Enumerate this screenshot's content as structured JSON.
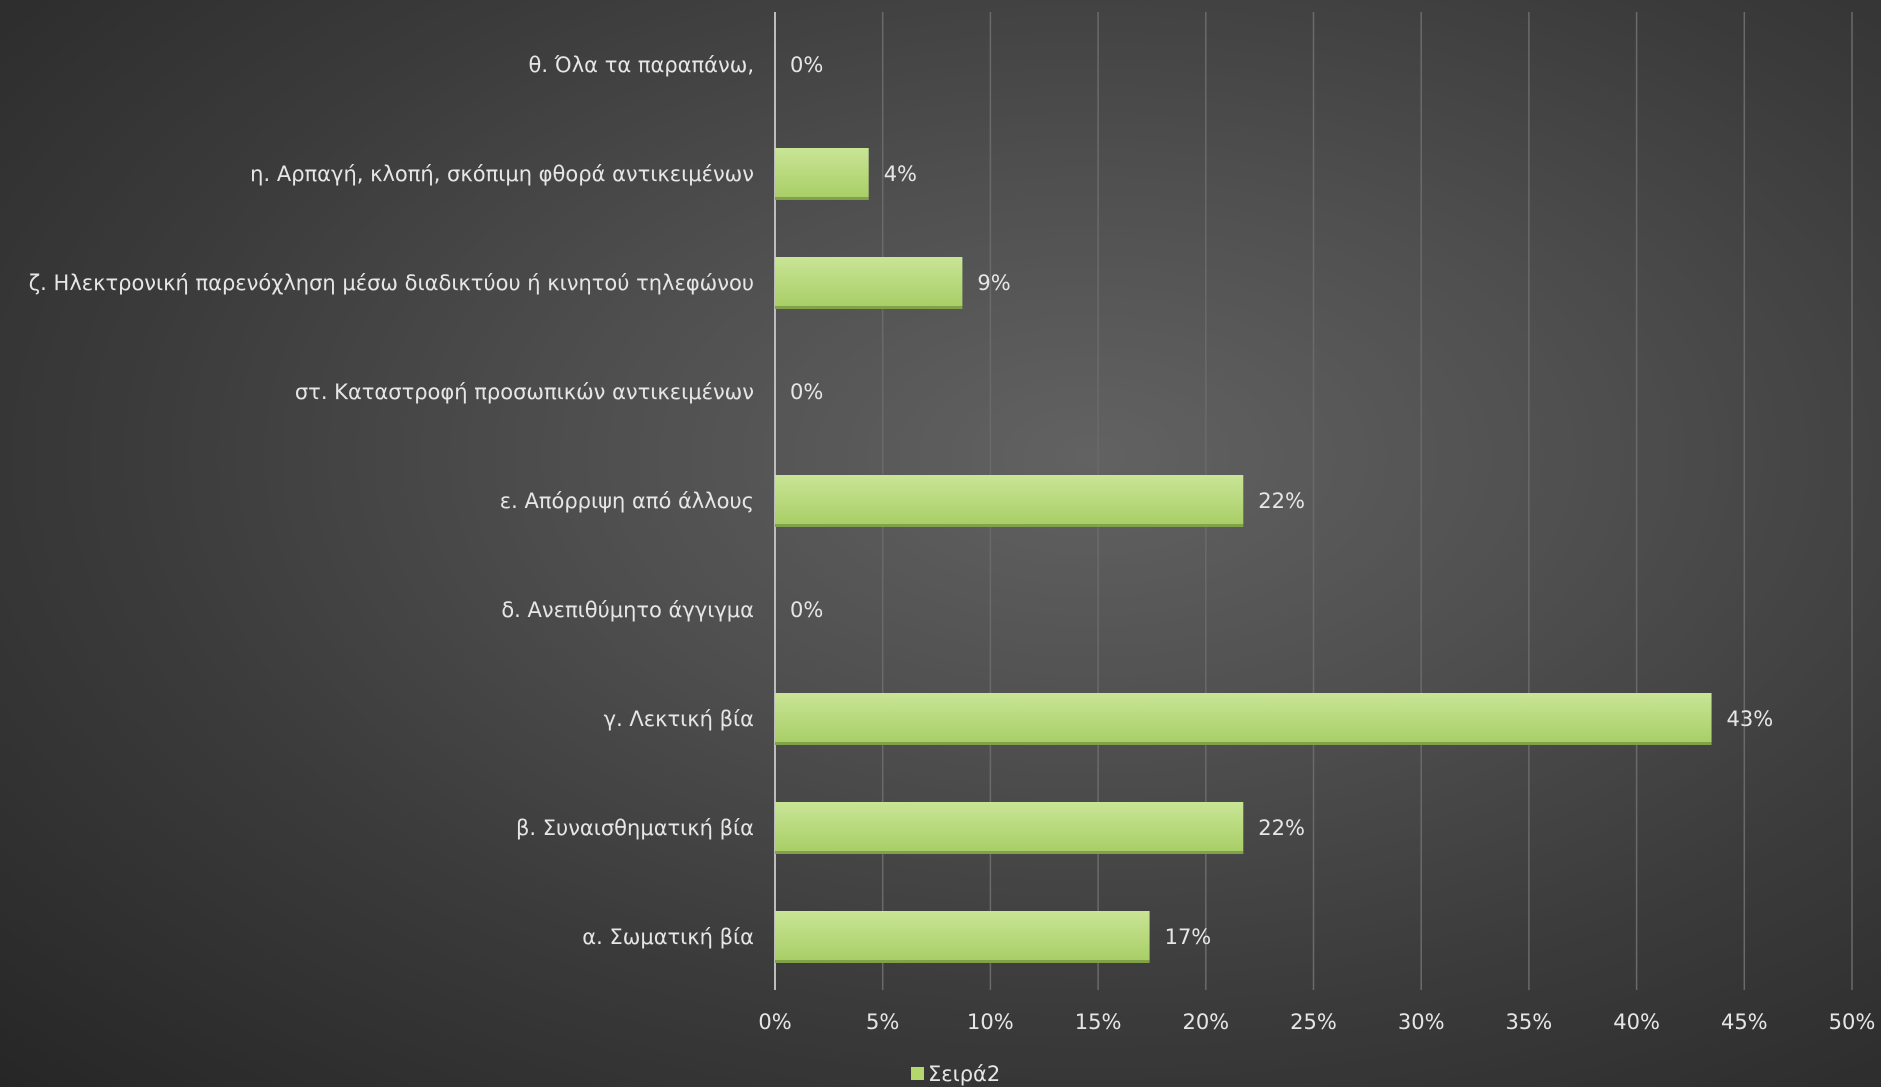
{
  "chart_data": {
    "type": "bar",
    "orientation": "horizontal",
    "categories": [
      "θ. Όλα τα παραπάνω,",
      "η. Αρπαγή, κλοπή, σκόπιμη φθορά αντικειμένων",
      "ζ. Ηλεκτρονική παρενόχληση μέσω διαδικτύου ή κινητού τηλεφώνου",
      "στ. Καταστροφή προσωπικών αντικειμένων",
      "ε. Απόρριψη από άλλους",
      "δ. Ανεπιθύμητο άγγιγμα",
      "γ. Λεκτική βία",
      "β. Συναισθηματική βία",
      "α. Σωματική βία"
    ],
    "series": [
      {
        "name": "Σειρά2",
        "values": [
          0,
          4.35,
          8.7,
          0,
          21.74,
          0,
          43.48,
          21.74,
          17.39
        ],
        "labels": [
          "0%",
          "4%",
          "9%",
          "0%",
          "22%",
          "0%",
          "43%",
          "22%",
          "17%"
        ],
        "color": "#b5d86d"
      }
    ],
    "xlim": [
      0,
      50
    ],
    "xticks": [
      "0%",
      "5%",
      "10%",
      "15%",
      "20%",
      "25%",
      "30%",
      "35%",
      "40%",
      "45%",
      "50%"
    ],
    "grid": true,
    "legend_position": "bottom"
  },
  "colors": {
    "bar_top": "#c9e596",
    "bar_bottom": "#a7cd64",
    "text": "#e6e6e6",
    "grid": "#6a6a6a",
    "axis": "#bdbdbd"
  }
}
